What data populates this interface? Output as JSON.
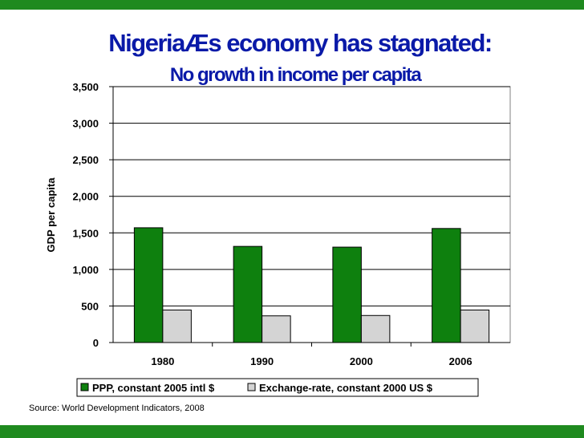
{
  "slide": {
    "title": "NigeriaÆs economy has stagnated:",
    "subtitle": "No growth in income per capita",
    "source": "Source: World Development Indicators, 2008"
  },
  "colors": {
    "bar_ppp": "#0e800e",
    "bar_exchange": "#d4d4d4",
    "title": "#0a1aa8",
    "frame_bars": "#1f8a1f"
  },
  "chart_data": {
    "type": "bar",
    "categories": [
      "1980",
      "1990",
      "2000",
      "2006"
    ],
    "series": [
      {
        "name": "PPP, constant 2005 intl $",
        "values": [
          1570,
          1315,
          1305,
          1560
        ],
        "color": "#0e800e"
      },
      {
        "name": "Exchange-rate, constant 2000 US $",
        "values": [
          445,
          365,
          370,
          445
        ],
        "color": "#d4d4d4"
      }
    ],
    "ylabel": "GDP per capita",
    "xlabel": "",
    "ylim": [
      0,
      3500
    ],
    "yticks": [
      0,
      500,
      1000,
      1500,
      2000,
      2500,
      3000,
      3500
    ],
    "ytick_labels": [
      "0",
      "500",
      "1,000",
      "1,500",
      "2,000",
      "2,500",
      "3,000",
      "3,500"
    ],
    "grid": true,
    "legend_position": "bottom"
  }
}
